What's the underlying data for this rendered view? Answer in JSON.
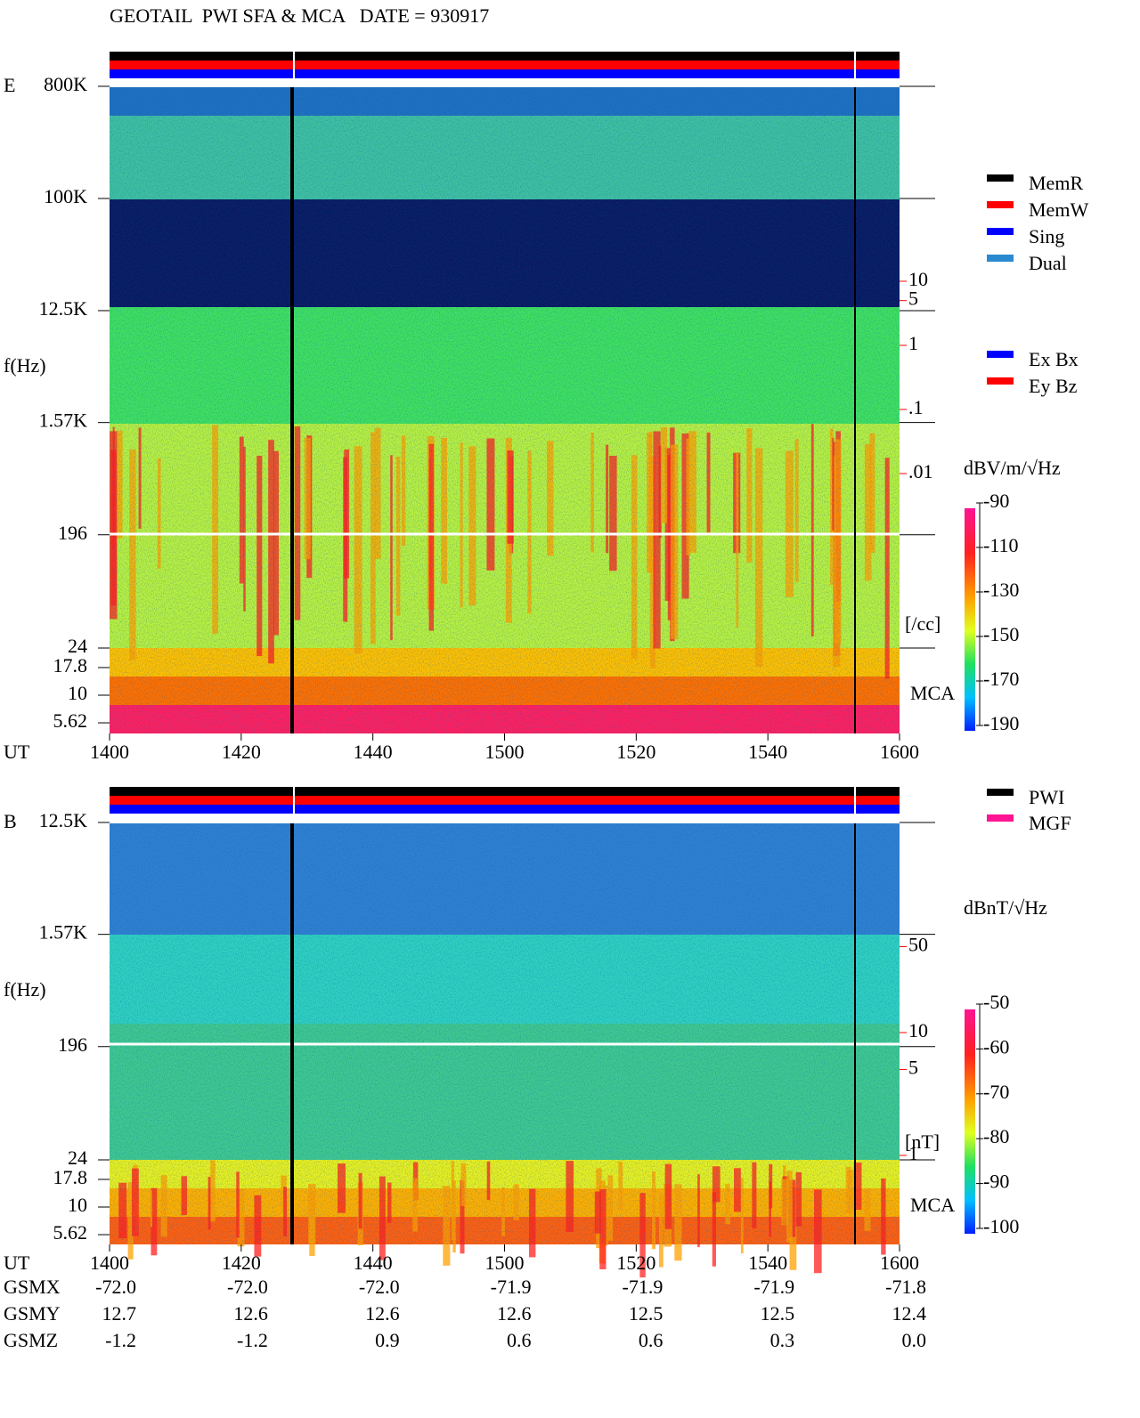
{
  "header": {
    "title": "GEOTAIL  PWI SFA & MCA   DATE = 930917"
  },
  "mode_legend": [
    {
      "name": "MemR",
      "color": "#000000"
    },
    {
      "name": "MemW",
      "color": "#ff0000"
    },
    {
      "name": "Sing",
      "color": "#0000ff"
    },
    {
      "name": "Dual",
      "color": "#2a8ad0"
    }
  ],
  "source_legend": [
    {
      "name": "PWI",
      "color": "#000000"
    },
    {
      "name": "MGF",
      "color": "#ff1493"
    }
  ],
  "chart_data": [
    {
      "type": "spectrogram",
      "panel_label": "E",
      "y_label": "f(Hz)",
      "x_label": "UT",
      "mca_label": "MCA",
      "xticks": [
        1400,
        1420,
        1440,
        1500,
        1520,
        1540,
        1600
      ],
      "yticks": [
        {
          "value": 800000,
          "label": "800K"
        },
        {
          "value": 100000,
          "label": "100K"
        },
        {
          "value": 12500,
          "label": "12.5K"
        },
        {
          "value": 1570,
          "label": "1.57K"
        },
        196,
        24,
        17.8,
        10,
        5.62
      ],
      "colorbar": {
        "label": "dBV/m/√Hz",
        "lim": [
          -190,
          -90
        ],
        "ticks": [
          -90,
          -110,
          -130,
          -150,
          -170,
          -190
        ]
      },
      "density_scale": {
        "ticks": [
          10,
          5,
          1,
          {
            "value": 0.1,
            "label": ".1"
          },
          {
            "value": 0.01,
            "label": ".01"
          }
        ],
        "unit": "[/cc]",
        "color": "#ff0000"
      },
      "channel_legend": [
        {
          "name": "Ex Bx",
          "color": "#0000ff"
        },
        {
          "name": "Ey Bz",
          "color": "#ff0000"
        }
      ]
    },
    {
      "type": "spectrogram",
      "panel_label": "B",
      "y_label": "f(Hz)",
      "x_label": "UT",
      "mca_label": "MCA",
      "xticks": [
        1400,
        1420,
        1440,
        1500,
        1520,
        1540,
        1600
      ],
      "yticks": [
        {
          "value": 12500,
          "label": "12.5K"
        },
        {
          "value": 1570,
          "label": "1.57K"
        },
        196,
        24,
        17.8,
        10,
        5.62
      ],
      "colorbar": {
        "label": "dBnT/√Hz",
        "lim": [
          -100,
          -50
        ],
        "ticks": [
          -50,
          -60,
          -70,
          -80,
          -90,
          -100
        ]
      },
      "density_scale": {
        "ticks": [
          50,
          10,
          5,
          1
        ],
        "unit": "[nT]",
        "color": "#ff0000"
      }
    }
  ],
  "orbit": {
    "rows": [
      {
        "name": "GSMX",
        "values": [
          "-72.0",
          "-72.0",
          "-72.0",
          "-71.9",
          "-71.9",
          "-71.9",
          "-71.8"
        ]
      },
      {
        "name": "GSMY",
        "values": [
          "12.7",
          "12.6",
          "12.6",
          "12.6",
          "12.5",
          "12.5",
          "12.4"
        ]
      },
      {
        "name": "GSMZ",
        "values": [
          "-1.2",
          "-1.2",
          "0.9",
          "0.6",
          "0.6",
          "0.3",
          "0.0"
        ]
      }
    ]
  }
}
